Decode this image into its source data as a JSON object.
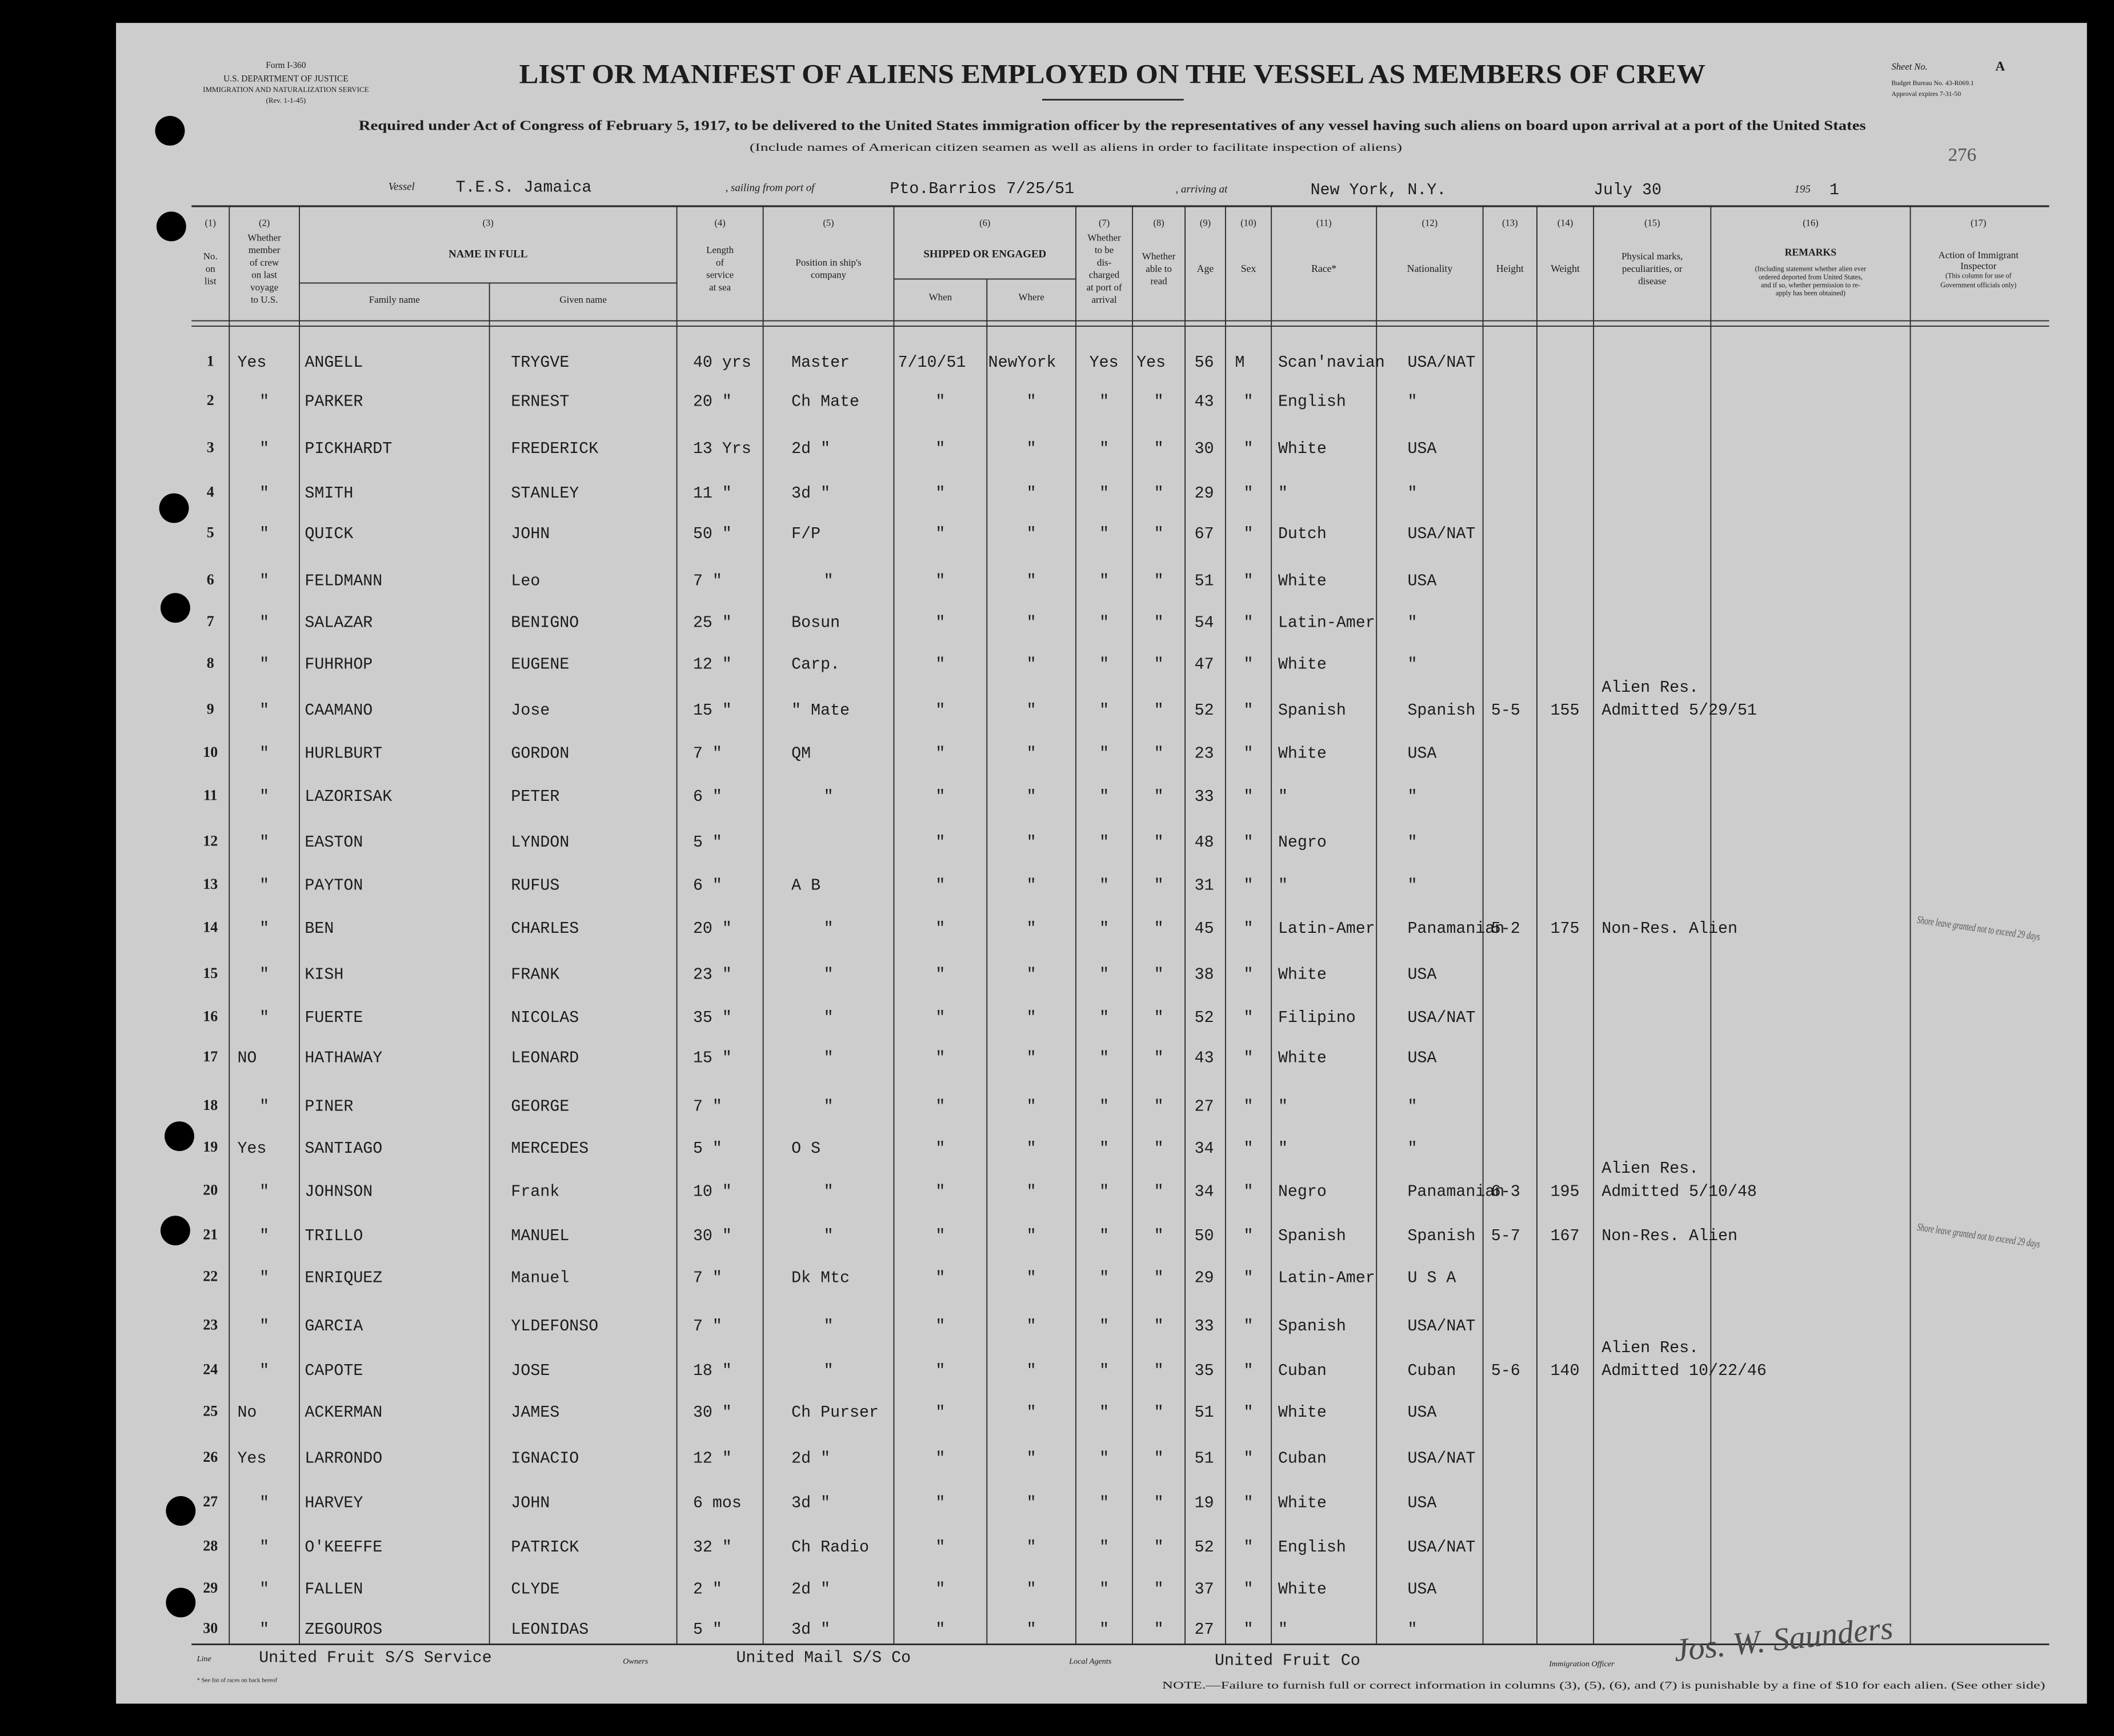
{
  "form": {
    "number": "Form I-360",
    "department": "U.S. DEPARTMENT OF JUSTICE",
    "service": "IMMIGRATION AND NATURALIZATION SERVICE",
    "revision": "(Rev. 1-1-45)"
  },
  "sheet": {
    "label": "Sheet No.",
    "value": "A",
    "budget": "Budget Bureau No. 43-R069.1",
    "approval": "Approval expires 7-31-50",
    "page_number": "276"
  },
  "header": {
    "title": "LIST OR MANIFEST OF ALIENS EMPLOYED ON THE VESSEL AS MEMBERS OF CREW",
    "subtitle": "Required under Act of Congress of February 5, 1917, to be delivered to the United States immigration officer by the representatives of any vessel having such aliens on board upon arrival at a port of the United States",
    "note": "(Include names of American citizen seamen as well as aliens in order to facilitate inspection of aliens)"
  },
  "voyage": {
    "vessel_label": "Vessel",
    "vessel": "T.E.S. Jamaica",
    "from_label": ", sailing from port of",
    "from": "Pto.Barrios 7/25/51",
    "arriving_label": ", arriving at",
    "arriving": "New York, N.Y.",
    "date": "July 30",
    "year_label": "195",
    "year": "1"
  },
  "table": {
    "columns": [
      {
        "num": "(1)",
        "label": [
          "No.",
          "on",
          "list"
        ]
      },
      {
        "num": "(2)",
        "label": [
          "Whether",
          "member",
          "of crew",
          "on last",
          "voyage",
          "to U.S."
        ]
      },
      {
        "num": "(3)",
        "label": [
          "NAME IN FULL"
        ],
        "sub": [
          "Family name",
          "Given name"
        ]
      },
      {
        "num": "(4)",
        "label": [
          "Length",
          "of",
          "service",
          "at sea"
        ]
      },
      {
        "num": "(5)",
        "label": [
          "Position in ship's",
          "company"
        ]
      },
      {
        "num": "(6)",
        "label": [
          "SHIPPED OR ENGAGED"
        ],
        "sub": [
          "When",
          "Where"
        ]
      },
      {
        "num": "(7)",
        "label": [
          "Whether",
          "to be",
          "dis-",
          "charged",
          "at port of",
          "arrival"
        ]
      },
      {
        "num": "(8)",
        "label": [
          "Whether",
          "able to",
          "read"
        ]
      },
      {
        "num": "(9)",
        "label": [
          "Age"
        ]
      },
      {
        "num": "(10)",
        "label": [
          "Sex"
        ]
      },
      {
        "num": "(11)",
        "label": [
          "Race*"
        ]
      },
      {
        "num": "(12)",
        "label": [
          "Nationality"
        ]
      },
      {
        "num": "(13)",
        "label": [
          "Height"
        ]
      },
      {
        "num": "(14)",
        "label": [
          "Weight"
        ]
      },
      {
        "num": "(15)",
        "label": [
          "Physical marks,",
          "peculiarities, or",
          "disease"
        ]
      },
      {
        "num": "(16)",
        "label": [
          "REMARKS",
          "(Including statement whether alien ever",
          "ordered deported from United States,",
          "and if so, whether permission to re-",
          "apply has been obtained)"
        ]
      },
      {
        "num": "(17)",
        "label": [
          "Action of Immigrant",
          "Inspector",
          "(This column for use of",
          "Government officials only)"
        ]
      }
    ],
    "rows": [
      [
        "1",
        "Yes",
        "ANGELL",
        "TRYGVE",
        "40 yrs",
        "Master",
        "7/10/51",
        "NewYork",
        "Yes",
        "Yes",
        "56",
        "M",
        "Scan'navian",
        "USA/NAT",
        null,
        null,
        null,
        null,
        null
      ],
      [
        "2",
        "\"",
        "PARKER",
        "ERNEST",
        "20 \"",
        "Ch Mate",
        "\"",
        "\"",
        "\"",
        "\"",
        "43",
        "\"",
        "English",
        "\"",
        null,
        null,
        null,
        null,
        null
      ],
      [
        "3",
        "\"",
        "PICKHARDT",
        "FREDERICK",
        "13 Yrs",
        "2d \"",
        "\"",
        "\"",
        "\"",
        "\"",
        "30",
        "\"",
        "White",
        "USA",
        null,
        null,
        null,
        null,
        null
      ],
      [
        "4",
        "\"",
        "SMITH",
        "STANLEY",
        "11 \"",
        "3d \"",
        "\"",
        "\"",
        "\"",
        "\"",
        "29",
        "\"",
        "\"",
        "\"",
        null,
        null,
        null,
        null,
        null
      ],
      [
        "5",
        "\"",
        "QUICK",
        "JOHN",
        "50 \"",
        "F/P",
        "\"",
        "\"",
        "\"",
        "\"",
        "67",
        "\"",
        "Dutch",
        "USA/NAT",
        null,
        null,
        null,
        null,
        null
      ],
      [
        "6",
        "\"",
        "FELDMANN",
        "Leo",
        "7 \"",
        "\"",
        "\"",
        "\"",
        "\"",
        "\"",
        "51",
        "\"",
        "White",
        "USA",
        null,
        null,
        null,
        null,
        null
      ],
      [
        "7",
        "\"",
        "SALAZAR",
        "BENIGNO",
        "25 \"",
        "Bosun",
        "\"",
        "\"",
        "\"",
        "\"",
        "54",
        "\"",
        "Latin-Amer",
        "\"",
        null,
        null,
        null,
        null,
        null
      ],
      [
        "8",
        "\"",
        "FUHRHOP",
        "EUGENE",
        "12 \"",
        "Carp.",
        "\"",
        "\"",
        "\"",
        "\"",
        "47",
        "\"",
        "White",
        "\"",
        null,
        null,
        null,
        null,
        null
      ],
      [
        "9",
        "\"",
        "CAAMANO",
        "Jose",
        "15 \"",
        "\" Mate",
        "\"",
        "\"",
        "\"",
        "\"",
        "52",
        "\"",
        "Spanish",
        "Spanish",
        "5-5",
        "155",
        null,
        [
          "Alien Res.",
          "Admitted 5/29/51"
        ],
        null
      ],
      [
        "10",
        "\"",
        "HURLBURT",
        "GORDON",
        "7 \"",
        "QM",
        "\"",
        "\"",
        "\"",
        "\"",
        "23",
        "\"",
        "White",
        "USA",
        null,
        null,
        null,
        null,
        null
      ],
      [
        "11",
        "\"",
        "LAZORISAK",
        "PETER",
        "6 \"",
        "\"",
        "\"",
        "\"",
        "\"",
        "\"",
        "33",
        "\"",
        "\"",
        "\"",
        null,
        null,
        null,
        null,
        null
      ],
      [
        "12",
        "\"",
        "EASTON",
        "LYNDON",
        "5 \"",
        null,
        "\"",
        "\"",
        "\"",
        "\"",
        "48",
        "\"",
        "Negro",
        "\"",
        null,
        null,
        null,
        null,
        null
      ],
      [
        "13",
        "\"",
        "PAYTON",
        "RUFUS",
        "6 \"",
        "A B",
        "\"",
        "\"",
        "\"",
        "\"",
        "31",
        "\"",
        "\"",
        "\"",
        null,
        null,
        null,
        null,
        null
      ],
      [
        "14",
        "\"",
        "BEN",
        "CHARLES",
        "20 \"",
        "\"",
        "\"",
        "\"",
        "\"",
        "\"",
        "45",
        "\"",
        "Latin-Amer",
        "Panamanian",
        "5-2",
        "175",
        null,
        "Non-Res. Alien",
        "Shore leave granted not to exceed 29 days"
      ],
      [
        "15",
        "\"",
        "KISH",
        "FRANK",
        "23 \"",
        "\"",
        "\"",
        "\"",
        "\"",
        "\"",
        "38",
        "\"",
        "White",
        "USA",
        null,
        null,
        null,
        null,
        null
      ],
      [
        "16",
        "\"",
        "FUERTE",
        "NICOLAS",
        "35 \"",
        "\"",
        "\"",
        "\"",
        "\"",
        "\"",
        "52",
        "\"",
        "Filipino",
        "USA/NAT",
        null,
        null,
        null,
        null,
        null
      ],
      [
        "17",
        "NO",
        "HATHAWAY",
        "LEONARD",
        "15 \"",
        "\"",
        "\"",
        "\"",
        "\"",
        "\"",
        "43",
        "\"",
        "White",
        "USA",
        null,
        null,
        null,
        null,
        null
      ],
      [
        "18",
        "\"",
        "PINER",
        "GEORGE",
        "7 \"",
        "\"",
        "\"",
        "\"",
        "\"",
        "\"",
        "27",
        "\"",
        "\"",
        "\"",
        null,
        null,
        null,
        null,
        null
      ],
      [
        "19",
        "Yes",
        "SANTIAGO",
        "MERCEDES",
        "5 \"",
        "O S",
        "\"",
        "\"",
        "\"",
        "\"",
        "34",
        "\"",
        "\"",
        "\"",
        null,
        null,
        null,
        null,
        null
      ],
      [
        "20",
        "\"",
        "JOHNSON",
        "Frank",
        "10 \"",
        "\"",
        "\"",
        "\"",
        "\"",
        "\"",
        "34",
        "\"",
        "Negro",
        "Panamanian",
        "6-3",
        "195",
        null,
        [
          "Alien Res.",
          "Admitted 5/10/48"
        ],
        null
      ],
      [
        "21",
        "\"",
        "TRILLO",
        "MANUEL",
        "30 \"",
        "\"",
        "\"",
        "\"",
        "\"",
        "\"",
        "50",
        "\"",
        "Spanish",
        "Spanish",
        "5-7",
        "167",
        null,
        "Non-Res. Alien",
        "Shore leave granted not to exceed 29 days"
      ],
      [
        "22",
        "\"",
        "ENRIQUEZ",
        "Manuel",
        "7 \"",
        "Dk Mtc",
        "\"",
        "\"",
        "\"",
        "\"",
        "29",
        "\"",
        "Latin-Amer",
        "U S A",
        null,
        null,
        null,
        null,
        null
      ],
      [
        "23",
        "\"",
        "GARCIA",
        "YLDEFONSO",
        "7 \"",
        "\"",
        "\"",
        "\"",
        "\"",
        "\"",
        "33",
        "\"",
        "Spanish",
        "USA/NAT",
        null,
        null,
        null,
        null,
        null
      ],
      [
        "24",
        "\"",
        "CAPOTE",
        "JOSE",
        "18 \"",
        "\"",
        "\"",
        "\"",
        "\"",
        "\"",
        "35",
        "\"",
        "Cuban",
        "Cuban",
        "5-6",
        "140",
        null,
        [
          "Alien Res.",
          "Admitted 10/22/46"
        ],
        null
      ],
      [
        "25",
        "No",
        "ACKERMAN",
        "JAMES",
        "30 \"",
        "Ch Purser",
        "\"",
        "\"",
        "\"",
        "\"",
        "51",
        "\"",
        "White",
        "USA",
        null,
        null,
        null,
        null,
        null
      ],
      [
        "26",
        "Yes",
        "LARRONDO",
        "IGNACIO",
        "12 \"",
        "2d \"",
        "\"",
        "\"",
        "\"",
        "\"",
        "51",
        "\"",
        "Cuban",
        "USA/NAT",
        null,
        null,
        null,
        null,
        null
      ],
      [
        "27",
        "\"",
        "HARVEY",
        "JOHN",
        "6 mos",
        "3d \"",
        "\"",
        "\"",
        "\"",
        "\"",
        "19",
        "\"",
        "White",
        "USA",
        null,
        null,
        null,
        null,
        null
      ],
      [
        "28",
        "\"",
        "O'KEEFFE",
        "PATRICK",
        "32 \"",
        "Ch Radio",
        "\"",
        "\"",
        "\"",
        "\"",
        "52",
        "\"",
        "English",
        "USA/NAT",
        null,
        null,
        null,
        null,
        null
      ],
      [
        "29",
        "\"",
        "FALLEN",
        "CLYDE",
        "2 \"",
        "2d \"",
        "\"",
        "\"",
        "\"",
        "\"",
        "37",
        "\"",
        "White",
        "USA",
        null,
        null,
        null,
        null,
        null
      ],
      [
        "30",
        "\"",
        "ZEGOUROS",
        "LEONIDAS",
        "5 \"",
        "3d \"",
        "\"",
        "\"",
        "\"",
        "\"",
        "27",
        "\"",
        "\"",
        "\"",
        null,
        null,
        null,
        null,
        null
      ]
    ]
  },
  "footer": {
    "line_label": "Line",
    "line": "United Fruit S/S Service",
    "owners_label": "Owners",
    "owners": "United Mail S/S Co",
    "agents_label": "Local Agents",
    "agents": "United Fruit Co",
    "officer_label": "Immigration Officer",
    "officer_signature": "Jos. W. Saunders",
    "races_note": "* See list of races on back hereof",
    "note": "NOTE.—Failure to furnish full or correct information in columns (3), (5), (6), and (7) is punishable by a fine of $10 for each alien. (See other side)"
  }
}
